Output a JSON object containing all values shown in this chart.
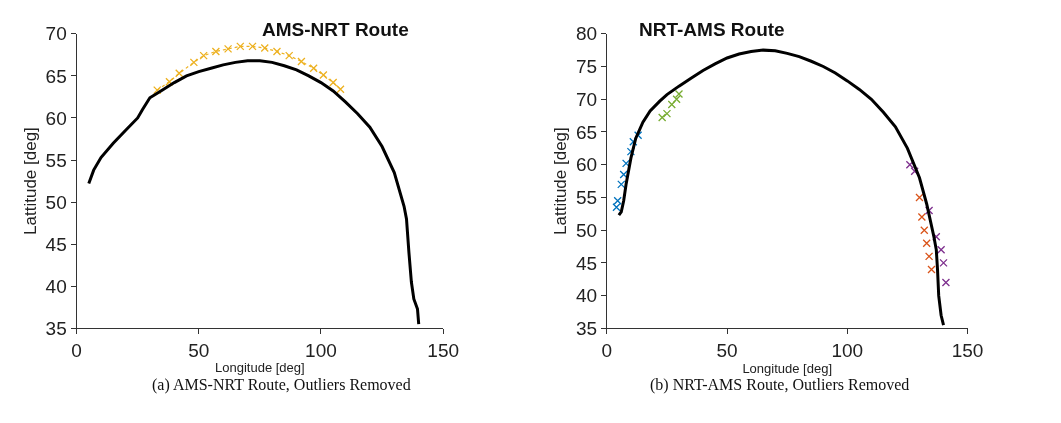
{
  "chart_data": [
    {
      "type": "line",
      "title": "AMS-NRT Route",
      "xlabel": "Longitude [deg]",
      "ylabel": "Lattitude [deg]",
      "xlim": [
        0,
        150
      ],
      "ylim": [
        35,
        70
      ],
      "xticks": [
        0,
        50,
        100,
        150
      ],
      "yticks": [
        35,
        40,
        45,
        50,
        55,
        60,
        65,
        70
      ],
      "annotations": [
        "(a) AMS-NRT Route, Outliers Removed"
      ],
      "series": [
        {
          "color": "#edb120",
          "marker": "cross",
          "line_style": "dotted",
          "x": [
            33,
            38,
            42,
            48,
            52,
            57,
            62,
            67,
            72,
            77,
            82,
            87,
            92,
            97,
            101,
            105,
            108
          ],
          "values": [
            63.3,
            64.3,
            65.3,
            66.6,
            67.4,
            67.9,
            68.2,
            68.5,
            68.5,
            68.3,
            67.9,
            67.4,
            66.7,
            65.9,
            65.1,
            64.2,
            63.4
          ]
        },
        {
          "color": "#000000",
          "marker": "none",
          "line_style": "solid",
          "x": [
            5,
            7,
            10,
            15,
            20,
            25,
            27,
            30,
            35,
            40,
            45,
            50,
            55,
            60,
            65,
            70,
            75,
            80,
            85,
            90,
            95,
            100,
            105,
            110,
            115,
            120,
            125,
            130,
            134,
            135,
            136,
            137,
            138,
            139.5,
            140
          ],
          "values": [
            52.2,
            53.8,
            55.3,
            57,
            58.5,
            60,
            61,
            62.4,
            63.3,
            64.2,
            65,
            65.5,
            65.9,
            66.3,
            66.6,
            66.8,
            66.8,
            66.6,
            66.2,
            65.7,
            65,
            64.2,
            63.2,
            61.9,
            60.5,
            58.9,
            56.6,
            53.5,
            49.5,
            48,
            44,
            40.5,
            38.5,
            37.3,
            35.5
          ]
        }
      ]
    },
    {
      "type": "line",
      "title": "NRT-AMS Route",
      "xlabel": "Longitude [deg]",
      "ylabel": "Lattitude [deg]",
      "xlim": [
        0,
        150
      ],
      "ylim": [
        35,
        80
      ],
      "xticks": [
        0,
        50,
        100,
        150
      ],
      "yticks": [
        35,
        40,
        45,
        50,
        55,
        60,
        65,
        70,
        75,
        80
      ],
      "annotations": [
        "(b) NRT-AMS Route, Outliers Removed"
      ],
      "series": [
        {
          "type": "scatter",
          "color": "#0072bd",
          "marker": "cross",
          "x": [
            4,
            4.5,
            6,
            7,
            8,
            10,
            11,
            13
          ],
          "values": [
            53.5,
            54.5,
            57,
            58.5,
            60.2,
            62,
            63.5,
            64.5
          ]
        },
        {
          "type": "scatter",
          "color": "#77ac30",
          "marker": "cross",
          "x": [
            23,
            25,
            27,
            29,
            30
          ],
          "values": [
            67.2,
            67.8,
            69.2,
            70,
            70.8
          ]
        },
        {
          "type": "scatter",
          "color": "#d95319",
          "marker": "cross",
          "x": [
            130,
            131,
            132,
            133,
            134,
            135
          ],
          "values": [
            55,
            52,
            50,
            48,
            46,
            44
          ]
        },
        {
          "type": "scatter",
          "color": "#7e2f8e",
          "marker": "cross",
          "x": [
            126,
            128,
            134,
            137,
            139,
            140,
            141
          ],
          "values": [
            60,
            59,
            53,
            49,
            47,
            45,
            42
          ]
        },
        {
          "color": "#000000",
          "marker": "none",
          "line_style": "solid",
          "x": [
            5,
            6,
            7,
            8,
            10,
            12,
            15,
            18,
            22,
            25,
            30,
            35,
            40,
            45,
            50,
            55,
            60,
            65,
            70,
            75,
            80,
            85,
            90,
            95,
            100,
            105,
            110,
            115,
            120,
            125,
            130,
            133,
            136,
            137,
            137.5,
            138,
            139,
            140
          ],
          "values": [
            52.3,
            52.8,
            54.5,
            57,
            61,
            64,
            66.5,
            68.2,
            69.7,
            70.7,
            72,
            73.2,
            74.4,
            75.4,
            76.3,
            76.9,
            77.3,
            77.5,
            77.4,
            77,
            76.5,
            75.8,
            75,
            74,
            72.8,
            71.5,
            70,
            68,
            65.8,
            62.5,
            58,
            54,
            49,
            47,
            44,
            40,
            37,
            35.5
          ]
        }
      ]
    }
  ]
}
